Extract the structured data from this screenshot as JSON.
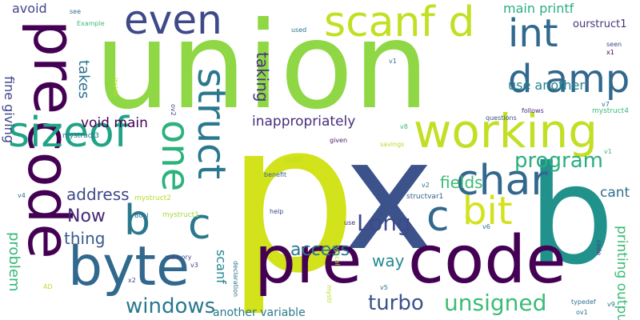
{
  "words": [
    {
      "text": "union",
      "color": "#8fd744"
    },
    {
      "text": "p",
      "color": "#d2e21b"
    },
    {
      "text": "x",
      "color": "#3b528b"
    },
    {
      "text": "b",
      "color": "#21918c"
    },
    {
      "text": "code",
      "color": "#440154"
    },
    {
      "text": "pre",
      "color": "#440154"
    },
    {
      "text": "pre",
      "color": "#440154"
    },
    {
      "text": "code",
      "color": "#440154"
    },
    {
      "text": "byte",
      "color": "#31688e"
    },
    {
      "text": "working",
      "color": "#c2df23"
    },
    {
      "text": "sizeof",
      "color": "#20a386"
    },
    {
      "text": "struct",
      "color": "#2a788e"
    },
    {
      "text": "char",
      "color": "#31688e"
    },
    {
      "text": "scanf d",
      "color": "#c2df23"
    },
    {
      "text": "d amp",
      "color": "#31688e"
    },
    {
      "text": "int",
      "color": "#31688e"
    },
    {
      "text": "even",
      "color": "#3e4989"
    },
    {
      "text": "one",
      "color": "#2db27d"
    },
    {
      "text": "c",
      "color": "#2a788e"
    },
    {
      "text": "b",
      "color": "#2a788e"
    },
    {
      "text": "c",
      "color": "#31688e"
    },
    {
      "text": "bit",
      "color": "#d2e21b"
    },
    {
      "text": "Long",
      "color": "#3e4989"
    },
    {
      "text": "unsigned",
      "color": "#3bbb75"
    },
    {
      "text": "windows",
      "color": "#2a788e"
    },
    {
      "text": "turbo",
      "color": "#3b528b"
    },
    {
      "text": "program",
      "color": "#29af7f"
    },
    {
      "text": "access",
      "color": "#2a788e"
    },
    {
      "text": "way",
      "color": "#238a8d"
    },
    {
      "text": "fields",
      "color": "#3bbb75"
    },
    {
      "text": "Now",
      "color": "#482878"
    },
    {
      "text": "thing",
      "color": "#38598c"
    },
    {
      "text": "address",
      "color": "#3e4989"
    },
    {
      "text": "problem",
      "color": "#35b779"
    },
    {
      "text": "void main",
      "color": "#440154"
    },
    {
      "text": "inappropriately",
      "color": "#472d7b"
    },
    {
      "text": "printing output",
      "color": "#3bbb75"
    },
    {
      "text": "cant",
      "color": "#2d708e"
    },
    {
      "text": "main printf",
      "color": "#29af7f"
    },
    {
      "text": "use another",
      "color": "#25848e"
    },
    {
      "text": "another variable",
      "color": "#2a788e"
    },
    {
      "text": "scanf",
      "color": "#25848e"
    },
    {
      "text": "taking",
      "color": "#463480"
    },
    {
      "text": "takes",
      "color": "#2c728e"
    },
    {
      "text": "fine giving",
      "color": "#404688"
    },
    {
      "text": "avoid",
      "color": "#404688"
    },
    {
      "text": "ourstruct1",
      "color": "#46337e"
    },
    {
      "text": "mystruct1",
      "color": "#a0da39"
    },
    {
      "text": "mystruct2",
      "color": "#b5de2b"
    },
    {
      "text": "mystruct3",
      "color": "#2c728e"
    },
    {
      "text": "mystruct4",
      "color": "#3bbb75"
    },
    {
      "text": "structvar1",
      "color": "#33638d"
    },
    {
      "text": "ctxSC",
      "color": "#b5de2b"
    },
    {
      "text": "benefit",
      "color": "#33638d"
    },
    {
      "text": "help",
      "color": "#3e4989"
    },
    {
      "text": "given",
      "color": "#482173"
    },
    {
      "text": "savings",
      "color": "#b5de2b"
    },
    {
      "text": "questions",
      "color": "#3b528b"
    },
    {
      "text": "follows",
      "color": "#482878"
    },
    {
      "text": "typedef",
      "color": "#2c728e"
    },
    {
      "text": "declaration",
      "color": "#2c728e"
    },
    {
      "text": "typical",
      "color": "#b5de2b"
    },
    {
      "text": "memory",
      "color": "#3e4989"
    },
    {
      "text": "Example",
      "color": "#3bbb75"
    },
    {
      "text": "inside",
      "color": "#b5de2b"
    },
    {
      "text": "used",
      "color": "#2d708e"
    },
    {
      "text": "seen",
      "color": "#3e4989"
    },
    {
      "text": "see",
      "color": "#2d708e"
    },
    {
      "text": "code",
      "color": "#433e85"
    },
    {
      "text": "Bool",
      "color": "#2c728e"
    },
    {
      "text": "AD",
      "color": "#b5de2b"
    },
    {
      "text": "mystr",
      "color": "#b5de2b"
    },
    {
      "text": "use",
      "color": "#482878"
    },
    {
      "text": "ov1",
      "color": "#2c728e"
    },
    {
      "text": "ov2",
      "color": "#3e4989"
    },
    {
      "text": "x1",
      "color": "#440154"
    },
    {
      "text": "x2",
      "color": "#3e4989"
    },
    {
      "text": "v1",
      "color": "#2c728e"
    },
    {
      "text": "v1",
      "color": "#3bbb75"
    },
    {
      "text": "v2",
      "color": "#2c728e"
    },
    {
      "text": "v3",
      "color": "#3e4989"
    },
    {
      "text": "v4",
      "color": "#2c728e"
    },
    {
      "text": "v5",
      "color": "#2c728e"
    },
    {
      "text": "v6",
      "color": "#2c728e"
    },
    {
      "text": "v7",
      "color": "#2c728e"
    },
    {
      "text": "v8",
      "color": "#3bbb75"
    },
    {
      "text": "v9",
      "color": "#2c728e"
    }
  ]
}
